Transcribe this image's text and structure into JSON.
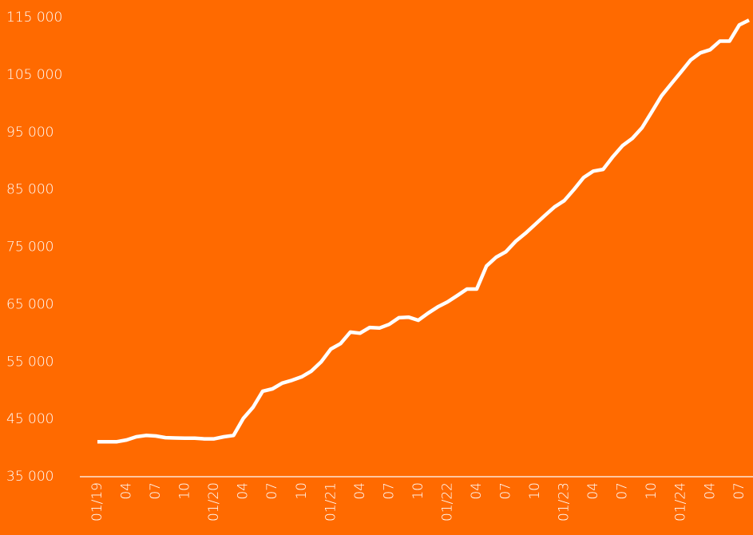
{
  "chart_data": {
    "type": "line",
    "categories": [
      "01/19",
      null,
      null,
      "04",
      null,
      null,
      "07",
      null,
      null,
      "10",
      null,
      null,
      "01/20",
      null,
      null,
      "04",
      null,
      null,
      "07",
      null,
      null,
      "10",
      null,
      null,
      "01/21",
      null,
      null,
      "04",
      null,
      null,
      "07",
      null,
      null,
      "10",
      null,
      null,
      "01/22",
      null,
      null,
      "04",
      null,
      null,
      "07",
      null,
      null,
      "10",
      null,
      null,
      "01/23",
      null,
      null,
      "04",
      null,
      null,
      "07",
      null,
      null,
      "10",
      null,
      null,
      "01/24",
      null,
      null,
      "04",
      null,
      null,
      "07",
      null
    ],
    "series": [
      {
        "color": "#ffffff",
        "values": [
          41100,
          41100,
          41100,
          41400,
          41950,
          42200,
          42100,
          41800,
          41750,
          41700,
          41700,
          41600,
          41600,
          41950,
          42200,
          45150,
          47100,
          49900,
          50300,
          51300,
          51800,
          52400,
          53400,
          55000,
          57250,
          58200,
          60200,
          60000,
          61000,
          60900,
          61550,
          62700,
          62800,
          62250,
          63500,
          64600,
          65450,
          66550,
          67700,
          67700,
          71700,
          73250,
          74200,
          76000,
          77400,
          78950,
          80500,
          82000,
          83100,
          85050,
          87150,
          88250,
          88550,
          90750,
          92700,
          93950,
          95800,
          98550,
          101350,
          103450,
          105500,
          107600,
          108850,
          109400,
          110900,
          110900,
          113700,
          114550
        ]
      }
    ],
    "ylim": [
      35000,
      115000
    ],
    "yticks": [
      {
        "value": 35000,
        "label": "35 000"
      },
      {
        "value": 45000,
        "label": "45 000"
      },
      {
        "value": 55000,
        "label": "55 000"
      },
      {
        "value": 65000,
        "label": "65 000"
      },
      {
        "value": 75000,
        "label": "75 000"
      },
      {
        "value": 85000,
        "label": "85 000"
      },
      {
        "value": 95000,
        "label": "95 000"
      },
      {
        "value": 105000,
        "label": "105 000"
      },
      {
        "value": 115000,
        "label": "115 000"
      }
    ]
  }
}
